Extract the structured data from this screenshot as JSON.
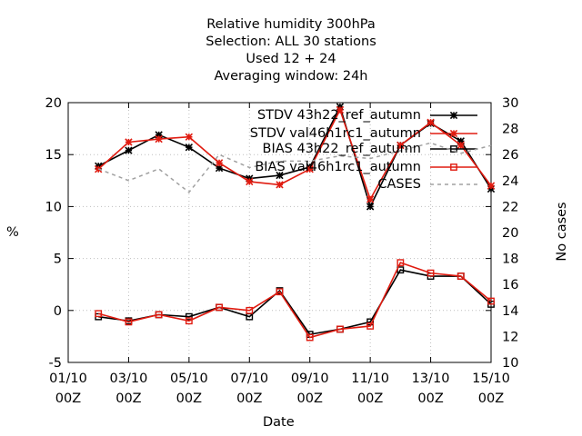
{
  "title_lines": [
    "Relative humidity 300hPa",
    "Selection: ALL      30 stations",
    "Used  12  + 24",
    "Averaging window: 24h"
  ],
  "colors": {
    "black": "#000000",
    "red": "#e01b10",
    "grey": "#a0a0a0",
    "grid": "#bfbfbf"
  },
  "chart_data": {
    "type": "line",
    "xlabel": "Date",
    "ylabel": "%",
    "y2label": "No cases",
    "ylim": [
      -5,
      20
    ],
    "y2lim": [
      10,
      30
    ],
    "yticks": [
      -5,
      0,
      5,
      10,
      15,
      20
    ],
    "y2ticks": [
      10,
      12,
      14,
      16,
      18,
      20,
      22,
      24,
      26,
      28,
      30
    ],
    "xlim_days": [
      1,
      15
    ],
    "xticks": [
      {
        "line1": "01/10",
        "line2": "00Z",
        "day": 1
      },
      {
        "line1": "03/10",
        "line2": "00Z",
        "day": 3
      },
      {
        "line1": "05/10",
        "line2": "00Z",
        "day": 5
      },
      {
        "line1": "07/10",
        "line2": "00Z",
        "day": 7
      },
      {
        "line1": "09/10",
        "line2": "00Z",
        "day": 9
      },
      {
        "line1": "11/10",
        "line2": "00Z",
        "day": 11
      },
      {
        "line1": "13/10",
        "line2": "00Z",
        "day": 13
      },
      {
        "line1": "15/10",
        "line2": "00Z",
        "day": 15
      }
    ],
    "x": [
      "02/10 00Z",
      "03/10 00Z",
      "04/10 00Z",
      "05/10 00Z",
      "06/10 00Z",
      "07/10 00Z",
      "08/10 00Z",
      "09/10 00Z",
      "10/10 00Z",
      "11/10 00Z",
      "12/10 00Z",
      "13/10 00Z",
      "14/10 00Z",
      "15/10 00Z"
    ],
    "x_days": [
      2,
      3,
      4,
      5,
      6,
      7,
      8,
      9,
      10,
      11,
      12,
      13,
      14,
      15
    ],
    "series": [
      {
        "name": "STDV 43h22_ref_autumn",
        "axis": "y1",
        "color": "black",
        "marker": "star",
        "values": [
          13.9,
          15.4,
          16.9,
          15.7,
          13.7,
          12.7,
          13.0,
          13.8,
          19.6,
          10.0,
          15.9,
          18.0,
          16.3,
          11.7
        ]
      },
      {
        "name": "STDV val46h1rc1_autumn",
        "axis": "y1",
        "color": "red",
        "marker": "star",
        "values": [
          13.6,
          16.2,
          16.5,
          16.7,
          14.2,
          12.4,
          12.1,
          13.6,
          19.3,
          10.7,
          15.9,
          18.1,
          15.9,
          12.0
        ]
      },
      {
        "name": "BIAS 43h22_ref_autumn",
        "axis": "y1",
        "color": "black",
        "marker": "square",
        "values": [
          -0.6,
          -1.0,
          -0.4,
          -0.6,
          0.3,
          -0.6,
          1.9,
          -2.3,
          -1.8,
          -1.1,
          3.9,
          3.3,
          3.3,
          0.6
        ]
      },
      {
        "name": "BIAS val46h1rc1_autumn",
        "axis": "y1",
        "color": "red",
        "marker": "square",
        "values": [
          -0.3,
          -1.1,
          -0.4,
          -1.0,
          0.3,
          0.0,
          1.8,
          -2.6,
          -1.8,
          -1.5,
          4.6,
          3.6,
          3.3,
          0.9
        ]
      },
      {
        "name": "CASES",
        "axis": "y2",
        "color": "grey",
        "marker": "none",
        "values": [
          24.9,
          24.0,
          24.9,
          23.1,
          26.0,
          25.0,
          25.5,
          25.5,
          25.9,
          25.7,
          26.3,
          26.9,
          26.1,
          26.7
        ]
      }
    ]
  }
}
